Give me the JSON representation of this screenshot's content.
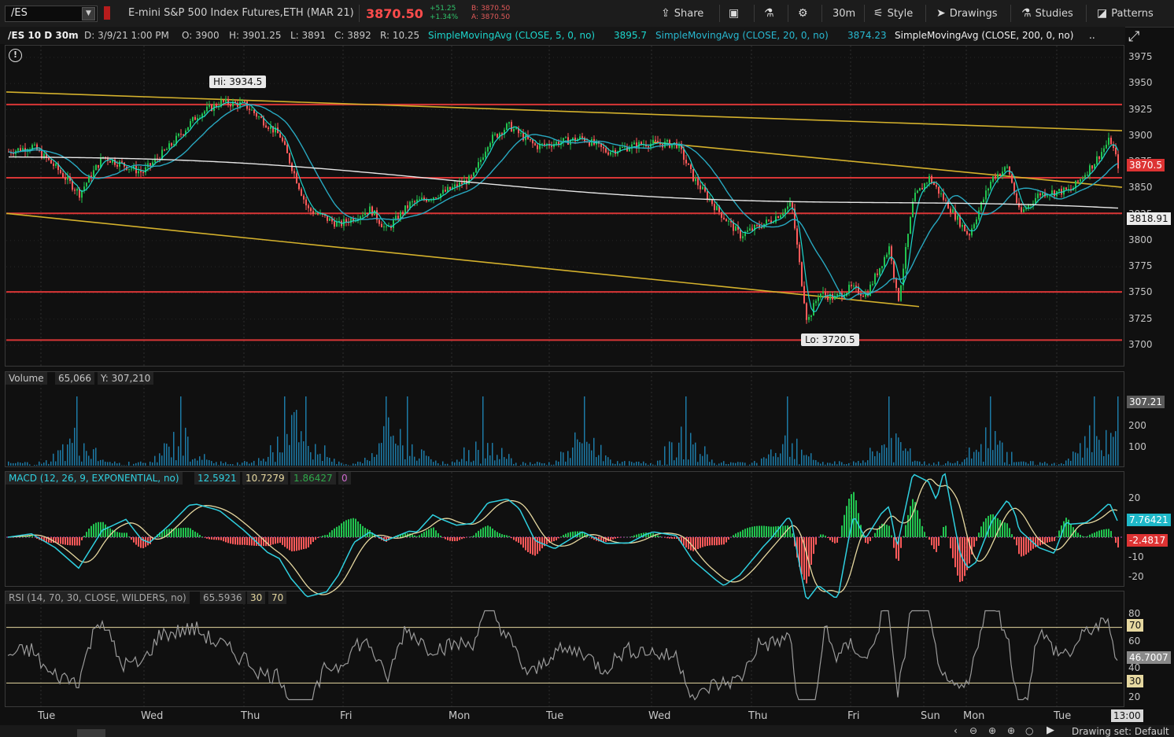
{
  "toolbar": {
    "symbol": "/ES",
    "instrument": "E-mini S&P 500 Index Futures,ETH (MAR 21)",
    "last_price": "3870.50",
    "change_abs": "+51.25",
    "change_pct": "+1.34%",
    "bid": "B: 3870.50",
    "ask": "A: 3870.50",
    "share_label": "Share",
    "timeframe_label": "30m",
    "style_label": "Style",
    "drawings_label": "Drawings",
    "studies_label": "Studies",
    "patterns_label": "Patterns",
    "icons": [
      "share-icon",
      "screenshot-icon",
      "flask-icon",
      "gear-icon",
      "style-icon",
      "cursor-icon",
      "studies-icon",
      "patterns-icon"
    ]
  },
  "header": {
    "title": "/ES 10 D 30m",
    "date": "D: 3/9/21 1:00 PM",
    "open": "O: 3900",
    "high": "H: 3901.25",
    "low": "L: 3891",
    "close": "C: 3892",
    "range": "R: 10.25",
    "sma5_label": "SimpleMovingAvg (CLOSE, 5, 0, no)",
    "sma5_value": "3895.7",
    "sma20_label": "SimpleMovingAvg (CLOSE, 20, 0, no)",
    "sma20_value": "3874.23",
    "sma200_label": "SimpleMovingAvg (CLOSE, 200, 0, no)",
    "sma200_value": ".."
  },
  "colors": {
    "up": "#22c34f",
    "down": "#ff5a5a",
    "sma5": "#1dd5cc",
    "sma20": "#28a8c0",
    "sma200": "#e6e6e6",
    "trend": "#d4b12c",
    "level": "#d93636",
    "macd_line": "#2fd0e0",
    "signal_line": "#e6d8a0",
    "rsi_line": "#9a9a9a",
    "volume": "#1d7aa6"
  },
  "price_panel": {
    "y_ticks": [
      "3975",
      "3950",
      "3925",
      "3900",
      "3875",
      "3850",
      "3825",
      "3800",
      "3775",
      "3750",
      "3725",
      "3700"
    ],
    "hi_label": "Hi: 3934.5",
    "lo_label": "Lo: 3720.5",
    "last_tag": "3870.5",
    "sma200_tag": "3818.91",
    "alert_icon": "alert-icon"
  },
  "volume_panel": {
    "label": "Volume",
    "value": "65,066",
    "y_value": "Y: 307,210",
    "tag": "307.21",
    "y_ticks": [
      "200",
      "100"
    ]
  },
  "macd_panel": {
    "label": "MACD (12, 26, 9, EXPONENTIAL, no)",
    "value": "12.5921",
    "avg": "10.7279",
    "diff": "1.86427",
    "zero": "0",
    "y_ticks": [
      "20",
      "10",
      "-10",
      "-20"
    ],
    "tag_value": "7.76421",
    "tag_diff": "-2.4817"
  },
  "rsi_panel": {
    "label": "RSI (14, 70, 30, CLOSE, WILDERS, no)",
    "value": "65.5936",
    "overbought": "30",
    "oversold": "70",
    "y_ticks": [
      "80",
      "60",
      "40",
      "20"
    ],
    "tag_70": "70",
    "tag_30": "30",
    "tag_value": "46.7007"
  },
  "x_axis": {
    "labels": [
      "Tue",
      "Wed",
      "Thu",
      "Fri",
      "Mon",
      "Tue",
      "Wed",
      "Thu",
      "Fri",
      "Sun",
      "Mon",
      "Tue"
    ],
    "time_tag": "13:00"
  },
  "bottom": {
    "drawing_set": "Drawing set: Default"
  }
}
